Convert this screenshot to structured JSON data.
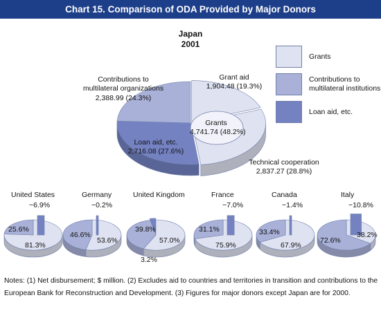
{
  "header": {
    "title": "Chart 15. Comparison of ODA Provided by Major Donors"
  },
  "colors": {
    "grants": "#dfe2f1",
    "multilateral": "#a9b1d8",
    "loan": "#7482c2",
    "outline": "#6f7fa8"
  },
  "legend": [
    {
      "key": "grants",
      "label": "Grants"
    },
    {
      "key": "multilateral",
      "label": "Contributions to multilateral institutions"
    },
    {
      "key": "loan",
      "label": "Loan aid, etc."
    }
  ],
  "chart_data": [
    {
      "type": "pie",
      "title": "Japan",
      "subtitle": "2001",
      "unit": "$ million",
      "slices": [
        {
          "label": "Grant aid",
          "value": 1904.48,
          "percent": 19.3,
          "color_key": "grants"
        },
        {
          "label": "Technical cooperation",
          "value": 2837.27,
          "percent": 28.8,
          "color_key": "grants"
        },
        {
          "label": "Loan aid, etc.",
          "value": 2716.08,
          "percent": 27.6,
          "color_key": "loan"
        },
        {
          "label": "Contributions to multilateral organizations",
          "value": 2388.99,
          "percent": 24.3,
          "color_key": "multilateral"
        }
      ],
      "grants_total": {
        "label": "Grants",
        "value": 4741.74,
        "percent": 48.2
      },
      "slice_labels": {
        "grant_aid_name": "Grant aid",
        "grant_aid_value": "1,904.48 (19.3%)",
        "tech_name": "Technical cooperation",
        "tech_value": "2,837.27 (28.8%)",
        "loan_name": "Loan aid, etc.",
        "loan_value": "2,716.08 (27.6%)",
        "multi_name": "Contributions to multilateral organizations",
        "multi_value": "2,388.99 (24.3%)",
        "grants_name": "Grants",
        "grants_value": "4,741.74 (48.2%)"
      }
    },
    {
      "type": "pie",
      "title": "United States",
      "grants": 81.3,
      "multilateral": 25.6,
      "loan": -6.9,
      "labels": {
        "grants": "81.3%",
        "multilateral": "25.6%",
        "loan": "−6.9%"
      }
    },
    {
      "type": "pie",
      "title": "Germany",
      "grants": 53.6,
      "multilateral": 46.6,
      "loan": -0.2,
      "labels": {
        "grants": "53.6%",
        "multilateral": "46.6%",
        "loan": "−0.2%"
      }
    },
    {
      "type": "pie",
      "title": "United Kingdom",
      "grants": 57.0,
      "multilateral": 39.8,
      "loan": 3.2,
      "labels": {
        "grants": "57.0%",
        "multilateral": "39.8%",
        "loan": "3.2%"
      }
    },
    {
      "type": "pie",
      "title": "France",
      "grants": 75.9,
      "multilateral": 31.1,
      "loan": -7.0,
      "labels": {
        "grants": "75.9%",
        "multilateral": "31.1%",
        "loan": "−7.0%"
      }
    },
    {
      "type": "pie",
      "title": "Canada",
      "grants": 67.9,
      "multilateral": 33.4,
      "loan": -1.4,
      "labels": {
        "grants": "67.9%",
        "multilateral": "33.4%",
        "loan": "−1.4%"
      }
    },
    {
      "type": "pie",
      "title": "Italy",
      "grants": 38.2,
      "multilateral": 72.6,
      "loan": -10.8,
      "labels": {
        "grants": "38.2%",
        "multilateral": "72.6%",
        "loan": "−10.8%"
      }
    }
  ],
  "notes": {
    "line1": "Notes: (1) Net disbursement; $ million.  (2) Excludes aid to countries and territories in transition and contributions to the",
    "line2": "European Bank for Reconstruction and Development.  (3) Figures for major donors except Japan are for 2000."
  }
}
